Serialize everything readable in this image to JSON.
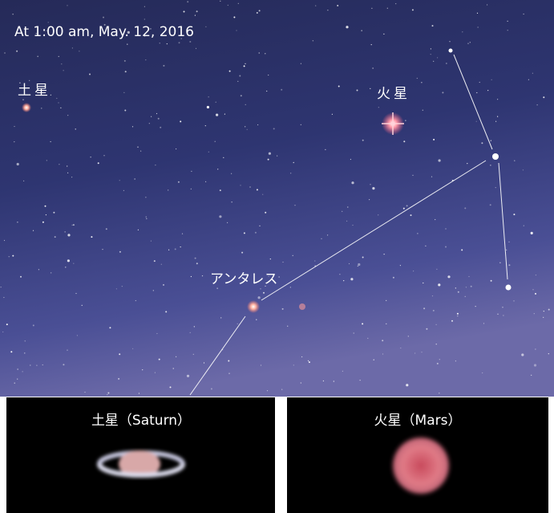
{
  "caption": "At 1:00 am, May. 12, 2016",
  "sky_labels": {
    "saturn": "土星",
    "mars": "火星",
    "antares": "アンタレス"
  },
  "panels": [
    {
      "label": "土星（Saturn）"
    },
    {
      "label": "火星（Mars）"
    }
  ]
}
